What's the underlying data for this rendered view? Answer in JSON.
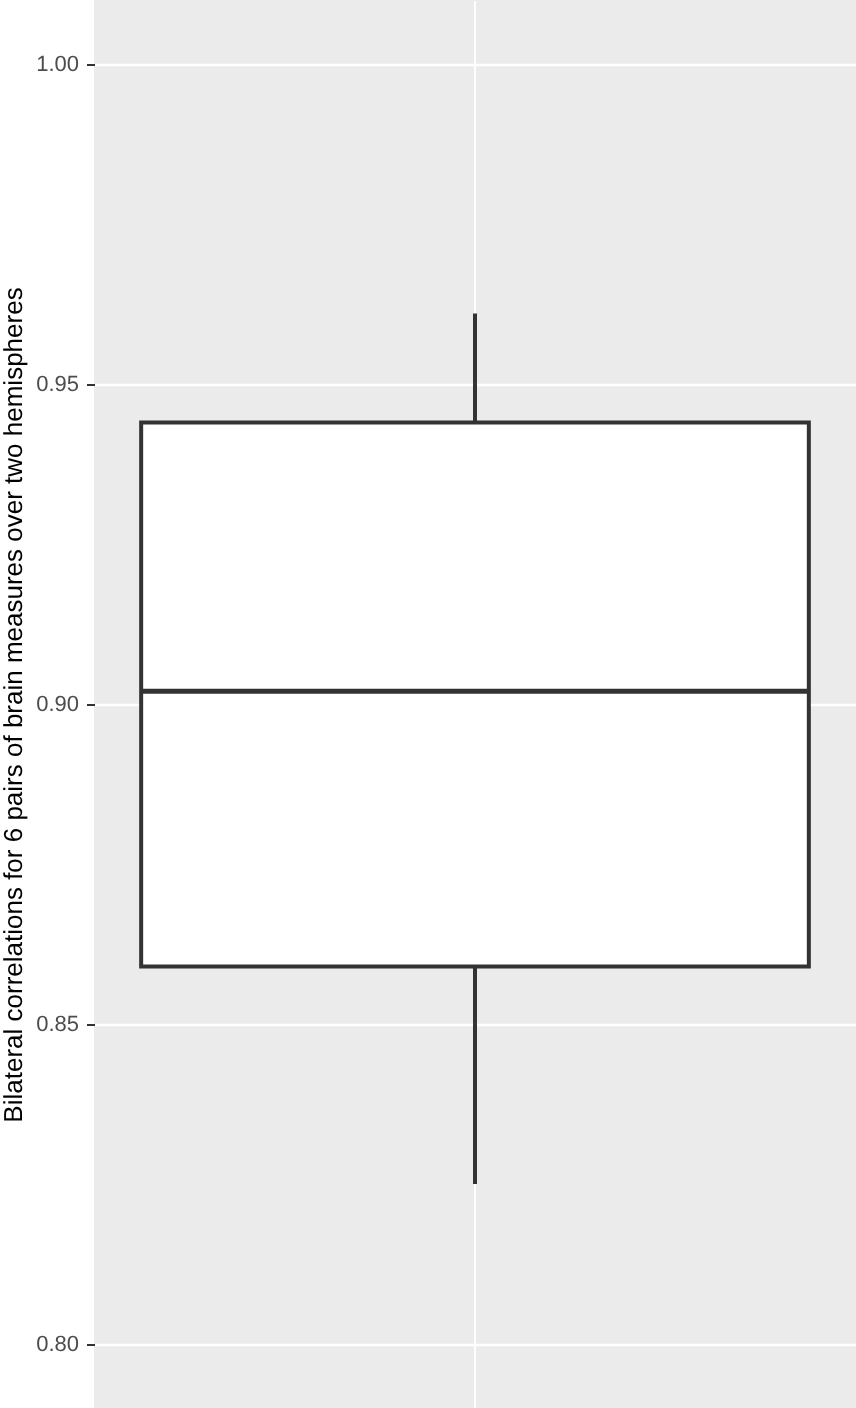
{
  "chart_data": {
    "type": "box",
    "ylabel": "Bilateral correlations for 6 pairs of brain measures over two hemispheres",
    "categories": [
      null
    ],
    "boxes": [
      {
        "low": 0.825,
        "q1": 0.859,
        "median": 0.902,
        "q3": 0.944,
        "high": 0.961
      }
    ],
    "ylim": [
      0.79,
      1.01
    ],
    "yticks": [
      {
        "value": 0.8,
        "label": "0.80"
      },
      0.85,
      {
        "value": 0.9,
        "label": "0.90"
      },
      0.95,
      {
        "value": 1.0,
        "label": "1.00"
      }
    ],
    "grid": true,
    "tick_labels": "y"
  }
}
